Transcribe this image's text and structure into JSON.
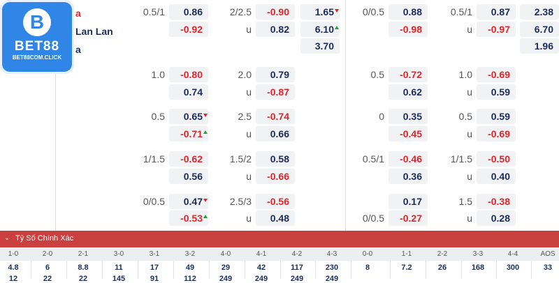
{
  "logo": {
    "name": "BET88",
    "site": "BET88COM.CLICK",
    "badge": "B"
  },
  "teams": [
    {
      "text": "a",
      "color": "#e0262b"
    },
    {
      "text": "Lan Lan",
      "color": "#1b2c5b"
    },
    {
      "text": "a",
      "color": "#1b2c5b"
    }
  ],
  "market": {
    "left": {
      "row1": {
        "h1": "0.5/1",
        "c1": "0.86",
        "c2": "-0.92",
        "h2": "2/2.5",
        "u": "u",
        "c3": "-0.90",
        "c4": "0.82",
        "d1": "1.65",
        "d2": "6.10",
        "d3": "3.70"
      },
      "row2": {
        "h1": "1.0",
        "c1": "-0.80",
        "c2": "0.74",
        "h2": "2.0",
        "u": "u",
        "c3": "0.79",
        "c4": "-0.87"
      },
      "row3": {
        "h1": "0.5",
        "c1": "0.65",
        "c2": "-0.71",
        "h2": "2.5",
        "u": "u",
        "c3": "-0.74",
        "c4": "0.66"
      },
      "row4": {
        "h1": "1/1.5",
        "c1": "-0.62",
        "c2": "0.56",
        "h2": "1.5/2",
        "u": "u",
        "c3": "0.58",
        "c4": "-0.66"
      },
      "row5": {
        "h1": "0/0.5",
        "c1": "0.47",
        "c2": "-0.53",
        "h2": "2.5/3",
        "u": "u",
        "c3": "-0.56",
        "c4": "0.48"
      }
    },
    "right": {
      "row1": {
        "h1": "0/0.5",
        "c1": "0.88",
        "c2": "-0.98",
        "h2": "0.5/1",
        "u": "u",
        "c3": "0.87",
        "c4": "-0.97",
        "d1": "2.38",
        "d2": "6.70",
        "d3": "1.96"
      },
      "row2": {
        "h1": "0.5",
        "c1": "-0.72",
        "c2": "0.62",
        "h2": "1.0",
        "u": "u",
        "c3": "-0.69",
        "c4": "0.59"
      },
      "row3": {
        "h1": "0",
        "c1": "0.35",
        "c2": "-0.45",
        "h2": "0.5",
        "u": "u",
        "c3": "0.59",
        "c4": "-0.69"
      },
      "row4": {
        "h1": "0.5/1",
        "c1": "-0.46",
        "c2": "0.36",
        "h2": "1/1.5",
        "u": "u",
        "c3": "-0.50",
        "c4": "0.40"
      },
      "row5": {
        "h1": "0/0.5",
        "c1": "0.17",
        "c2": "-0.27",
        "h2": "1.5",
        "u": "u",
        "c3": "-0.38",
        "c4": "0.28"
      }
    }
  },
  "correct_score": {
    "title": "Tỷ Số Chính Xác",
    "headers": [
      "1-0",
      "2-0",
      "2-1",
      "3-0",
      "3-1",
      "3-2",
      "4-0",
      "4-1",
      "4-2",
      "4-3",
      "0-0",
      "1-1",
      "2-2",
      "3-3",
      "4-4",
      "AOS"
    ],
    "row1": [
      "4.8",
      "6",
      "8.8",
      "11",
      "17",
      "49",
      "29",
      "42",
      "117",
      "230",
      "8",
      "7.2",
      "26",
      "168",
      "300",
      "33"
    ],
    "row2": [
      "12",
      "22",
      "22",
      "145",
      "91",
      "112",
      "249",
      "249",
      "249",
      "249",
      "",
      "",
      "",
      "",
      "",
      ""
    ]
  },
  "colors": {
    "positive": "#1b2c5b",
    "negative": "#e0262b",
    "up": "#2a9d3a",
    "bar": "#c9403f",
    "brand": "#2f86e6"
  }
}
